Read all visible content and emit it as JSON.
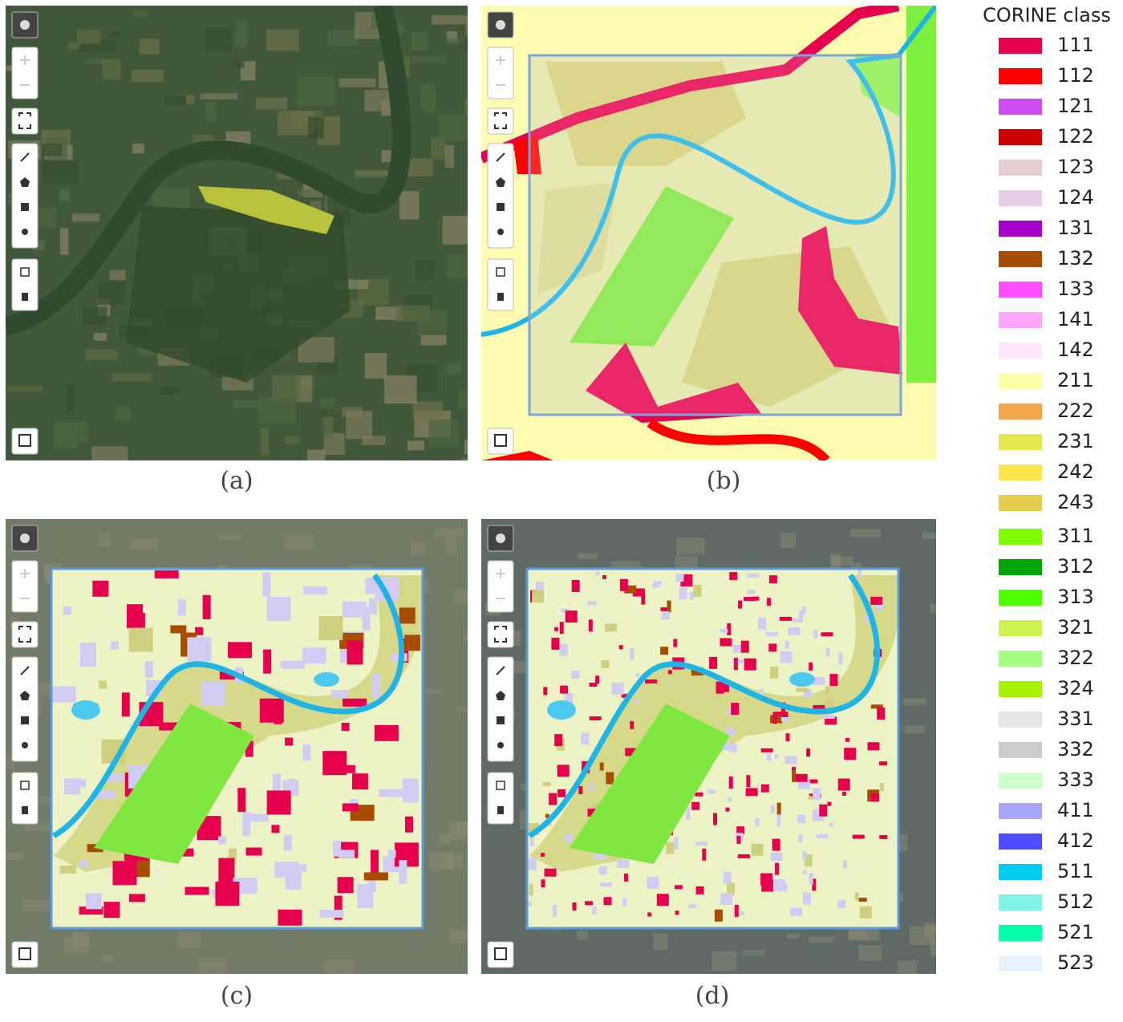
{
  "panels": [
    {
      "caption": "(a)"
    },
    {
      "caption": "(b)"
    },
    {
      "caption": "(c)"
    },
    {
      "caption": "(d)"
    }
  ],
  "legend": {
    "title": "CORINE class",
    "items": [
      {
        "label": "111",
        "color": "#e6004d"
      },
      {
        "label": "112",
        "color": "#ff0000"
      },
      {
        "label": "121",
        "color": "#cc4df2"
      },
      {
        "label": "122",
        "color": "#cc0000"
      },
      {
        "label": "123",
        "color": "#e6cccc"
      },
      {
        "label": "124",
        "color": "#e6cce6"
      },
      {
        "label": "131",
        "color": "#a600cc"
      },
      {
        "label": "132",
        "color": "#a64d00"
      },
      {
        "label": "133",
        "color": "#ff4dff"
      },
      {
        "label": "141",
        "color": "#ffa6ff"
      },
      {
        "label": "142",
        "color": "#ffe6ff"
      },
      {
        "label": "211",
        "color": "#ffffa8"
      },
      {
        "label": "222",
        "color": "#f2a64d"
      },
      {
        "label": "231",
        "color": "#e6e64d"
      },
      {
        "label": "242",
        "color": "#ffe64d"
      },
      {
        "label": "243",
        "color": "#e6cc4d"
      },
      {
        "label": "311",
        "color": "#80ff00"
      },
      {
        "label": "312",
        "color": "#00a600"
      },
      {
        "label": "313",
        "color": "#4dff00"
      },
      {
        "label": "321",
        "color": "#ccf24d"
      },
      {
        "label": "322",
        "color": "#a6ff80"
      },
      {
        "label": "324",
        "color": "#a6f200"
      },
      {
        "label": "331",
        "color": "#e6e6e6"
      },
      {
        "label": "332",
        "color": "#cccccc"
      },
      {
        "label": "333",
        "color": "#ccffcc"
      },
      {
        "label": "411",
        "color": "#a6a6ff"
      },
      {
        "label": "412",
        "color": "#4d4dff"
      },
      {
        "label": "511",
        "color": "#00ccf2"
      },
      {
        "label": "512",
        "color": "#80f2e6"
      },
      {
        "label": "521",
        "color": "#00ffa6"
      },
      {
        "label": "523",
        "color": "#e6f2ff"
      }
    ]
  }
}
